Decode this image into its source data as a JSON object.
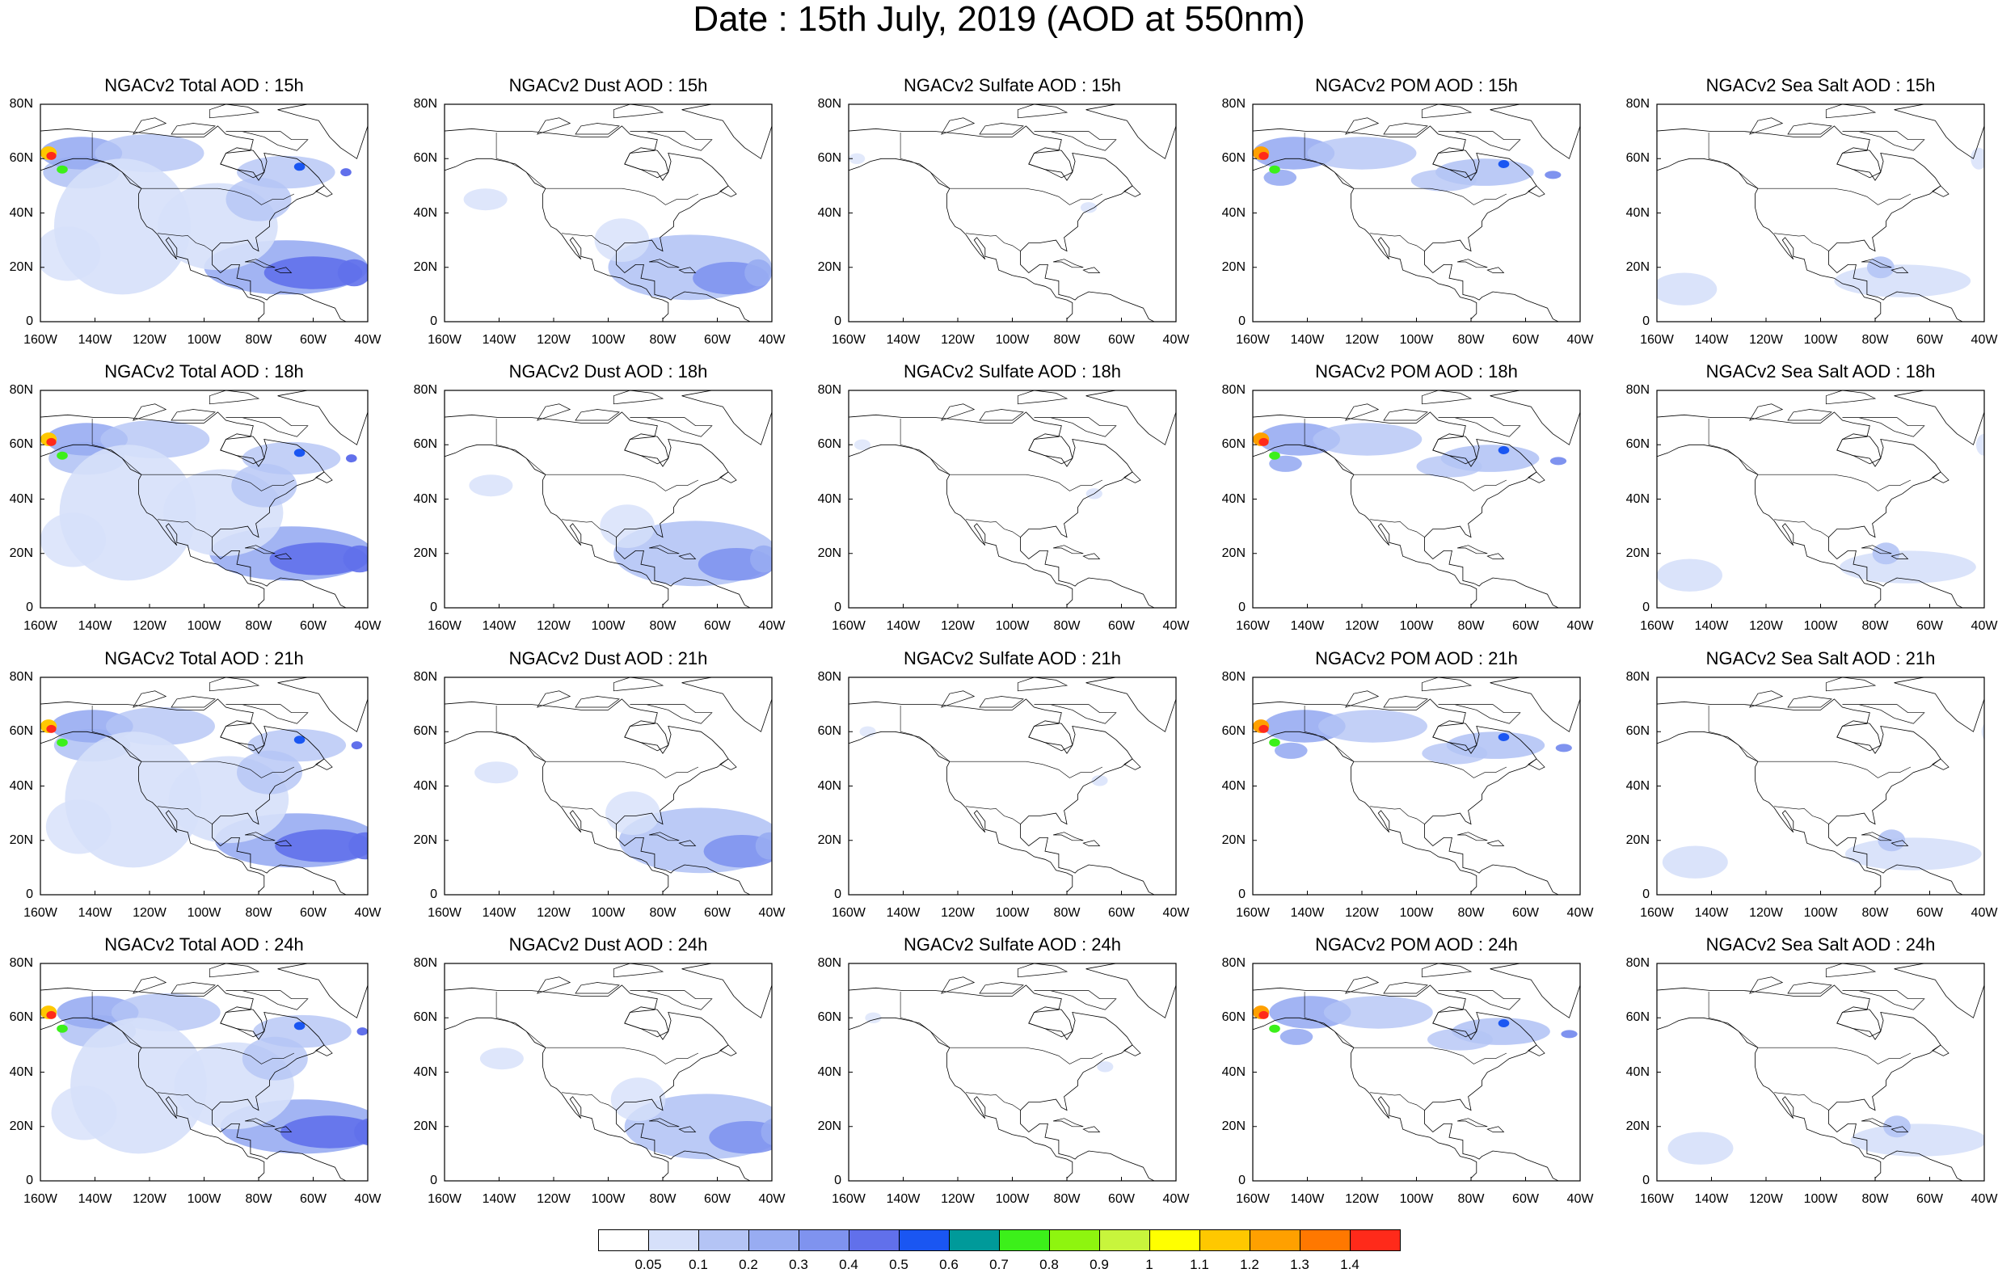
{
  "title": "Date : 15th July, 2019 (AOD at 550nm)",
  "species": [
    "Total",
    "Dust",
    "Sulfate",
    "POM",
    "Sea Salt"
  ],
  "times": [
    "15h",
    "18h",
    "21h",
    "24h"
  ],
  "panels": [
    [
      "NGACv2 Total AOD : 15h",
      "NGACv2 Dust AOD : 15h",
      "NGACv2 Sulfate AOD : 15h",
      "NGACv2 POM AOD : 15h",
      "NGACv2 Sea Salt AOD : 15h"
    ],
    [
      "NGACv2 Total AOD : 18h",
      "NGACv2 Dust AOD : 18h",
      "NGACv2 Sulfate AOD : 18h",
      "NGACv2 POM AOD : 18h",
      "NGACv2 Sea Salt AOD : 18h"
    ],
    [
      "NGACv2 Total AOD : 21h",
      "NGACv2 Dust AOD : 21h",
      "NGACv2 Sulfate AOD : 21h",
      "NGACv2 POM AOD : 21h",
      "NGACv2 Sea Salt AOD : 21h"
    ],
    [
      "NGACv2 Total AOD : 24h",
      "NGACv2 Dust AOD : 24h",
      "NGACv2 Sulfate AOD : 24h",
      "NGACv2 POM AOD : 24h",
      "NGACv2 Sea Salt  AOD : 24h"
    ]
  ],
  "axes": {
    "lon_labels": [
      "160W",
      "140W",
      "120W",
      "100W",
      "80W",
      "60W",
      "40W"
    ],
    "lat_labels": [
      "0",
      "20N",
      "40N",
      "60N",
      "80N"
    ],
    "lon_range": [
      -160,
      -40
    ],
    "lat_range": [
      0,
      80
    ]
  },
  "colorbar": {
    "labels": [
      "0.05",
      "0.1",
      "0.2",
      "0.3",
      "0.4",
      "0.5",
      "0.6",
      "0.7",
      "0.8",
      "0.9",
      "1",
      "1.1",
      "1.2",
      "1.3",
      "1.4"
    ],
    "colors": [
      "#ffffff",
      "#d6e0fa",
      "#b4c4f5",
      "#98acf2",
      "#7f93ef",
      "#6170eb",
      "#1a56f2",
      "#009a9a",
      "#3cf01a",
      "#8ef50f",
      "#c8f53c",
      "#ffff00",
      "#ffc800",
      "#ffa000",
      "#ff7800",
      "#ff2a1a"
    ]
  },
  "colors": {
    "land_outline": "#000000",
    "frame": "#000000"
  }
}
